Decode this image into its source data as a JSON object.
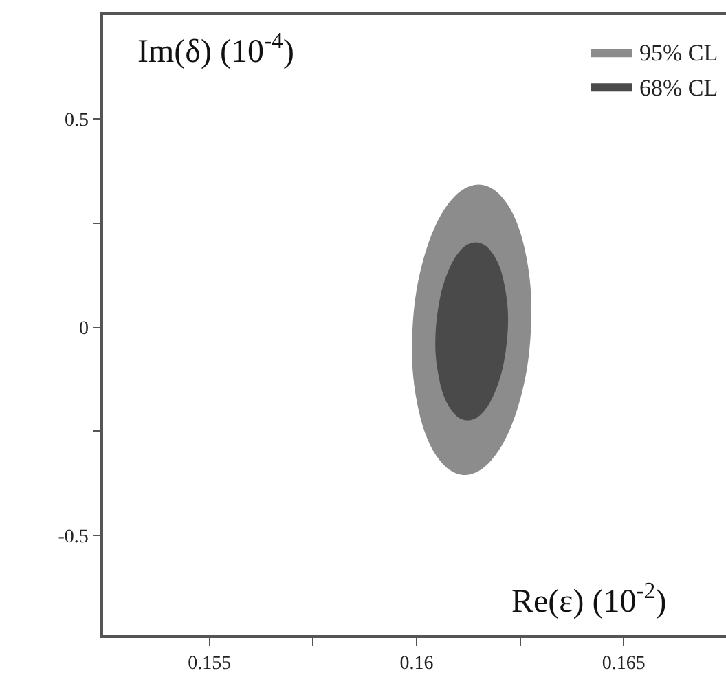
{
  "chart_data": {
    "type": "area",
    "xlabel": "Re(ε) (10$^{-2}$)",
    "ylabel": "Im(δ) (10$^{-4}$)",
    "xlim": [
      0.15243,
      0.16747
    ],
    "ylim": [
      -0.74,
      0.75
    ],
    "xticks": [
      0.155,
      {
        "value": 0.1575,
        "label": null
      },
      0.16,
      {
        "value": 0.1625,
        "label": null
      },
      0.165
    ],
    "yticks": [
      -0.5,
      {
        "value": -0.25,
        "label": null
      },
      0,
      {
        "value": 0.25,
        "label": null
      },
      0.5
    ],
    "legend": "top right",
    "series": [
      {
        "name": "95% CL",
        "color": "#8c8c8c",
        "x": [
          0.16276,
          0.16276,
          0.16265,
          0.16246,
          0.16219,
          0.16186,
          0.1615,
          0.16112,
          0.16076,
          0.16044,
          0.16018,
          0.15999,
          0.1599,
          0.1599,
          0.16001,
          0.1602,
          0.16047,
          0.1608,
          0.16116,
          0.16154,
          0.1619,
          0.16222,
          0.16248,
          0.16267,
          0.16276
        ],
        "values": [
          -0.006,
          0.084,
          0.169,
          0.241,
          0.296,
          0.331,
          0.343,
          0.331,
          0.296,
          0.241,
          0.169,
          0.084,
          -0.006,
          -0.096,
          -0.181,
          -0.253,
          -0.308,
          -0.343,
          -0.355,
          -0.343,
          -0.308,
          -0.253,
          -0.181,
          -0.096,
          -0.006
        ]
      },
      {
        "name": "68% CL",
        "color": "#4a4a4a",
        "x": [
          0.1622,
          0.1622,
          0.16213,
          0.16202,
          0.16185,
          0.16165,
          0.16143,
          0.1612,
          0.16098,
          0.16079,
          0.16063,
          0.16052,
          0.16046,
          0.16046,
          0.16053,
          0.16064,
          0.16081,
          0.16101,
          0.16123,
          0.16146,
          0.16168,
          0.16187,
          0.16203,
          0.16214,
          0.1622
        ],
        "values": [
          -0.01,
          0.045,
          0.097,
          0.141,
          0.175,
          0.197,
          0.204,
          0.197,
          0.175,
          0.141,
          0.097,
          0.045,
          -0.01,
          -0.065,
          -0.117,
          -0.161,
          -0.195,
          -0.217,
          -0.224,
          -0.217,
          -0.195,
          -0.161,
          -0.117,
          -0.065,
          -0.01
        ]
      }
    ]
  }
}
